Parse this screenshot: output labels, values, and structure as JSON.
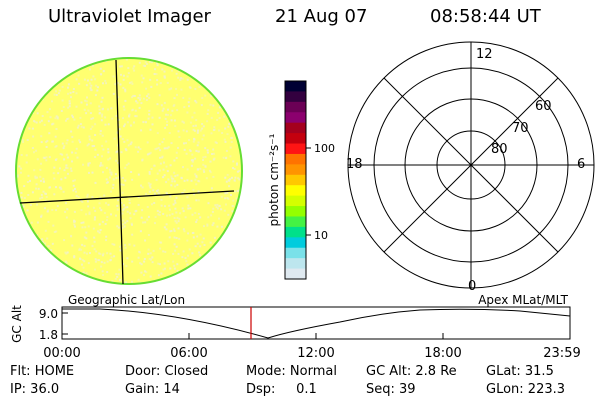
{
  "header": {
    "instrument": "Ultraviolet Imager",
    "date": "21 Aug 07",
    "time": "08:58:44 UT"
  },
  "colorbar": {
    "unit_label": "photon cm⁻²s⁻¹",
    "tick_100": "100",
    "tick_10": "10",
    "colors": [
      "#000033",
      "#33003f",
      "#6b0055",
      "#8c006e",
      "#a4001e",
      "#c4000e",
      "#ff1414",
      "#ff7300",
      "#ff9400",
      "#ffc800",
      "#ffff00",
      "#d4ff00",
      "#94ff00",
      "#44f244",
      "#00e08a",
      "#00ccdd",
      "#7ae1e9",
      "#bde6ee",
      "#dfe9f0"
    ]
  },
  "disk": {
    "fill_color": "#ffff70",
    "speckle_color": "#f2f2c8",
    "edge_color": "#66dd33"
  },
  "polar": {
    "lat_labels": [
      "60",
      "70",
      "80"
    ],
    "mlt_labels": {
      "top": "12",
      "left": "18",
      "right": "6",
      "bottom": "0"
    }
  },
  "timeline": {
    "axis_label": "GC Alt",
    "y_ticks": [
      "9.0",
      "1.8"
    ],
    "left_caption": "Geographic Lat/Lon",
    "right_caption": "Apex MLat/MLT",
    "x_ticks": [
      "00:00",
      "06:00",
      "12:00",
      "18:00",
      "23:59"
    ],
    "marker_color": "#cc0000"
  },
  "info": {
    "row1": {
      "flt": "Flt: HOME",
      "door": "Door: Closed",
      "mode": "Mode: Normal",
      "gc_alt": "GC Alt: 2.8 Re",
      "glat": "GLat: 31.5"
    },
    "row2": {
      "ip": "IP: 36.0",
      "gain": "Gain: 14",
      "dsp": "Dsp:     0.1",
      "seq": "Seq: 39",
      "glon": "GLon: 223.3"
    }
  }
}
